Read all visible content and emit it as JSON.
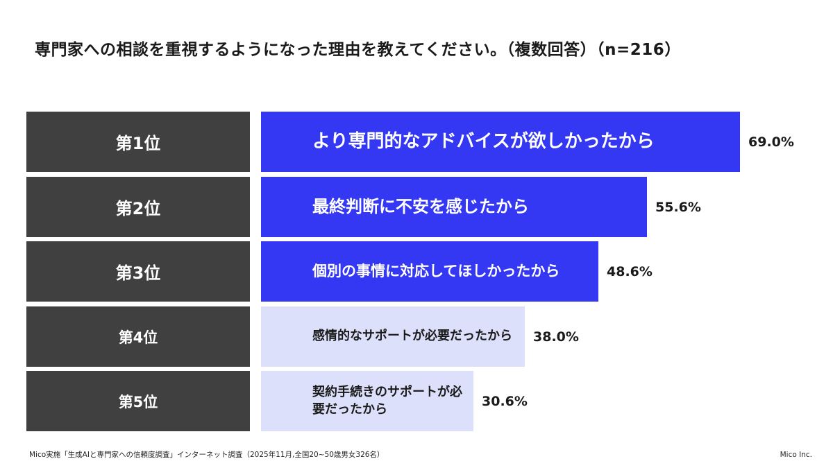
{
  "title": "専門家への相談を重視するようになった理由を教えてください。（複数回答）（n=216）",
  "chart_data": {
    "type": "bar",
    "orientation": "horizontal",
    "title": "専門家への相談を重視するようになった理由を教えてください。（複数回答）（n=216）",
    "unit": "%",
    "xlim": [
      0,
      100
    ],
    "grid": false,
    "categories": [
      "より専門的なアドバイスが欲しかったから",
      "最終判断に不安を感じたから",
      "個別の事情に対応してほしかったから",
      "感情的なサポートが必要だったから",
      "契約手続きのサポートが必要だったから"
    ],
    "ranks": [
      "第1位",
      "第2位",
      "第3位",
      "第4位",
      "第5位"
    ],
    "values": [
      69.0,
      55.6,
      48.6,
      38.0,
      30.6
    ],
    "value_labels": [
      "69.0%",
      "55.6%",
      "48.6%",
      "38.0%",
      "30.6%"
    ],
    "highlight_top": 3,
    "colors": {
      "highlight": "#3538f2",
      "normal": "#dde0fb",
      "rank_box": "#404040"
    }
  },
  "footer": {
    "source": "Mico実施「生成AIと専門家への信頼度調査」インターネット調査（2025年11月,全国20~50歳男女326名）",
    "company": "Mico Inc."
  }
}
